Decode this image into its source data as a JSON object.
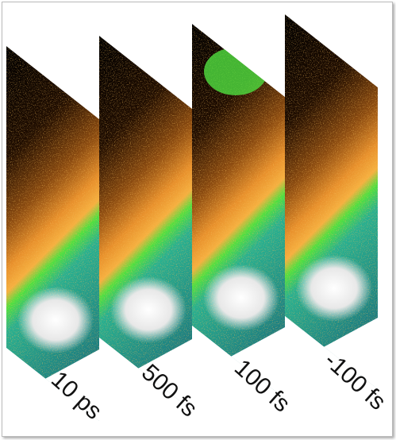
{
  "panels": [
    {
      "label": "10 ps"
    },
    {
      "label": "500 fs"
    },
    {
      "label": "100 fs"
    },
    {
      "label": "-100 fs"
    }
  ]
}
